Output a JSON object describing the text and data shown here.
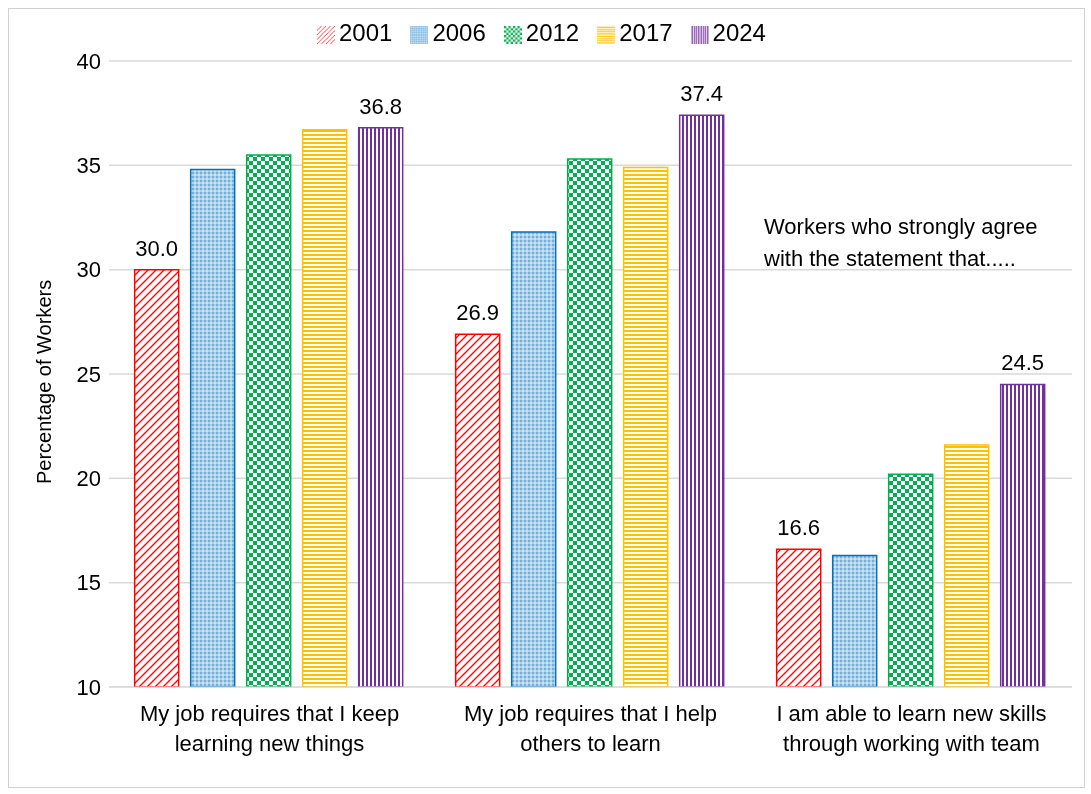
{
  "chart_data": {
    "type": "bar",
    "ylabel": "Percentage of Workers",
    "categories": [
      "My job requires that I keep learning new things",
      "My job requires that I help others to learn",
      "I am able to learn new skills through working with team"
    ],
    "series": [
      {
        "name": "2001",
        "color": "#ff0000",
        "values": [
          30.0,
          26.9,
          16.6
        ],
        "value_labels": [
          "30.0",
          "26.9",
          "16.6"
        ]
      },
      {
        "name": "2006",
        "color": "#0070c0",
        "values": [
          34.8,
          31.8,
          16.3
        ],
        "value_labels": [
          null,
          null,
          null
        ]
      },
      {
        "name": "2012",
        "color": "#00b050",
        "values": [
          35.5,
          35.3,
          20.2
        ],
        "value_labels": [
          null,
          null,
          null
        ]
      },
      {
        "name": "2017",
        "color": "#ffc000",
        "values": [
          36.7,
          34.9,
          21.6
        ],
        "value_labels": [
          null,
          null,
          null
        ]
      },
      {
        "name": "2024",
        "color": "#7030a0",
        "values": [
          36.8,
          37.4,
          24.5
        ],
        "value_labels": [
          "36.8",
          "37.4",
          "24.5"
        ]
      }
    ],
    "ylim": [
      10,
      40
    ],
    "yticks": [
      10,
      15,
      20,
      25,
      30,
      35,
      40
    ],
    "grid": "y",
    "legend": "top",
    "annotations": [
      "Workers who strongly agree with the statement that....."
    ]
  }
}
